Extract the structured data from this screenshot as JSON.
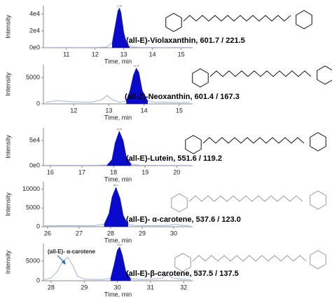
{
  "chart_data": [
    {
      "type": "line",
      "ylabel": "Intensity",
      "xlabel": "Time, min",
      "label": "(all-E)-Violaxanthin, 601.7 / 221.5",
      "peak_label": "12.85",
      "xlim": [
        10.2,
        15.4
      ],
      "ylim": [
        0,
        50000
      ],
      "xticks": [
        11,
        12,
        13,
        14,
        15
      ],
      "yticks": [
        {
          "value": 0,
          "label": "0e0"
        },
        {
          "value": 20000,
          "label": "2e4"
        },
        {
          "value": 40000,
          "label": "4e4"
        }
      ],
      "color": "#9fb4e0",
      "x": [
        10.2,
        11,
        11.5,
        12,
        12.4,
        12.6,
        12.7,
        12.8,
        12.85,
        12.9,
        13,
        13.1,
        13.3,
        13.6,
        14,
        14.5,
        15,
        15.4
      ],
      "values": [
        200,
        300,
        250,
        300,
        800,
        6000,
        25000,
        44000,
        47000,
        42000,
        18000,
        5000,
        800,
        300,
        300,
        250,
        300,
        300
      ],
      "peak": {
        "color": "#0a0acc",
        "x": [
          12.6,
          12.7,
          12.8,
          12.85,
          12.9,
          13,
          13.1,
          13.2
        ],
        "values": [
          6000,
          25000,
          44000,
          47000,
          42000,
          18000,
          5000,
          1000
        ]
      }
    },
    {
      "type": "line",
      "ylabel": "Intensity",
      "xlabel": "Time, min",
      "label": "(all-Z)-Neoxanthin, 601.4 / 167.3",
      "peak_label": "13.78",
      "xlim": [
        11.14,
        15.38
      ],
      "ylim": [
        0,
        7500
      ],
      "xticks": [
        12,
        13,
        14,
        15
      ],
      "yticks": [
        0,
        5000
      ],
      "color": "#9fb4e0",
      "x": [
        11.2,
        11.5,
        12,
        12.5,
        12.8,
        12.95,
        13.1,
        13.3,
        13.5,
        13.6,
        13.7,
        13.78,
        13.85,
        13.95,
        14.1,
        14.3,
        14.6,
        15,
        15.3
      ],
      "values": [
        300,
        600,
        400,
        300,
        800,
        1600,
        800,
        300,
        600,
        2500,
        5500,
        6800,
        6000,
        2500,
        600,
        300,
        300,
        250,
        300
      ],
      "peak": {
        "color": "#0a0acc",
        "x": [
          13.5,
          13.6,
          13.7,
          13.78,
          13.85,
          13.95,
          14.1
        ],
        "values": [
          600,
          2500,
          5500,
          6800,
          6000,
          2500,
          600
        ]
      }
    },
    {
      "type": "line",
      "ylabel": "Intensity",
      "xlabel": "Time, min",
      "label": "(all-E)-Lutein, 551.6 / 119.2",
      "peak_label": "18.18",
      "xlim": [
        15.78,
        20.5
      ],
      "ylim": [
        0,
        75000
      ],
      "xticks": [
        16,
        17,
        18,
        19,
        20
      ],
      "yticks": [
        {
          "value": 0,
          "label": "0e0"
        },
        {
          "value": 50000,
          "label": "5e4"
        }
      ],
      "color": "#9fb4e0",
      "x": [
        15.8,
        16.5,
        17,
        17.5,
        17.8,
        17.95,
        18.05,
        18.18,
        18.3,
        18.4,
        18.55,
        18.8,
        19.5,
        20.4
      ],
      "values": [
        500,
        700,
        600,
        700,
        1500,
        12000,
        45000,
        68000,
        50000,
        18000,
        3000,
        800,
        600,
        500
      ],
      "peak": {
        "color": "#0a0acc",
        "x": [
          17.8,
          17.95,
          18.05,
          18.18,
          18.3,
          18.4,
          18.55
        ],
        "values": [
          1500,
          12000,
          45000,
          68000,
          50000,
          18000,
          3000
        ]
      }
    },
    {
      "type": "line",
      "ylabel": "Intensity",
      "xlabel": "Time, min",
      "label": "(all-E)- α-carotene, 537.6 / 123.0",
      "peak_label": "28.17",
      "xlim": [
        25.87,
        30.6
      ],
      "ylim": [
        0,
        12000
      ],
      "xticks": [
        26,
        27,
        28,
        29,
        30
      ],
      "yticks": [
        0,
        5000,
        10000
      ],
      "color": "#9fb4e0",
      "x": [
        25.9,
        26.5,
        27,
        27.5,
        27.8,
        27.95,
        28.05,
        28.17,
        28.3,
        28.4,
        28.55,
        28.8,
        29.5,
        29.9,
        30.05,
        30.2,
        30.5
      ],
      "values": [
        200,
        300,
        250,
        300,
        700,
        3500,
        8000,
        10500,
        7500,
        3000,
        600,
        300,
        300,
        400,
        700,
        400,
        300
      ],
      "peak": {
        "color": "#0a0acc",
        "x": [
          27.8,
          27.95,
          28.05,
          28.17,
          28.3,
          28.4,
          28.55
        ],
        "values": [
          700,
          3500,
          8000,
          10500,
          7500,
          3000,
          600
        ]
      }
    },
    {
      "type": "line",
      "ylabel": "Intensity",
      "xlabel": "Time, min",
      "label": "(all-E)-β-carotene, 537.5 / 137.5",
      "peak_label": "30.07",
      "annotation": "(all-E)- α-carotene",
      "xlim": [
        27.77,
        32.27
      ],
      "ylim": [
        0,
        9500
      ],
      "xticks": [
        28,
        29,
        30,
        31,
        32
      ],
      "yticks": [
        0,
        5000
      ],
      "color": "#9fb4e0",
      "x": [
        27.8,
        28,
        28.2,
        28.35,
        28.5,
        28.65,
        28.8,
        29,
        29.5,
        29.8,
        29.9,
        30,
        30.07,
        30.15,
        30.25,
        30.4,
        30.8,
        31.3,
        31.5,
        31.7,
        32.2
      ],
      "values": [
        300,
        700,
        2500,
        5000,
        6000,
        4000,
        1200,
        400,
        300,
        600,
        4000,
        7800,
        8600,
        6500,
        2500,
        500,
        300,
        600,
        1400,
        600,
        300
      ],
      "peak": {
        "color": "#0a0acc",
        "x": [
          29.8,
          29.9,
          30,
          30.07,
          30.15,
          30.25,
          30.4
        ],
        "values": [
          600,
          4000,
          7800,
          8600,
          6500,
          2500,
          500
        ]
      }
    }
  ]
}
